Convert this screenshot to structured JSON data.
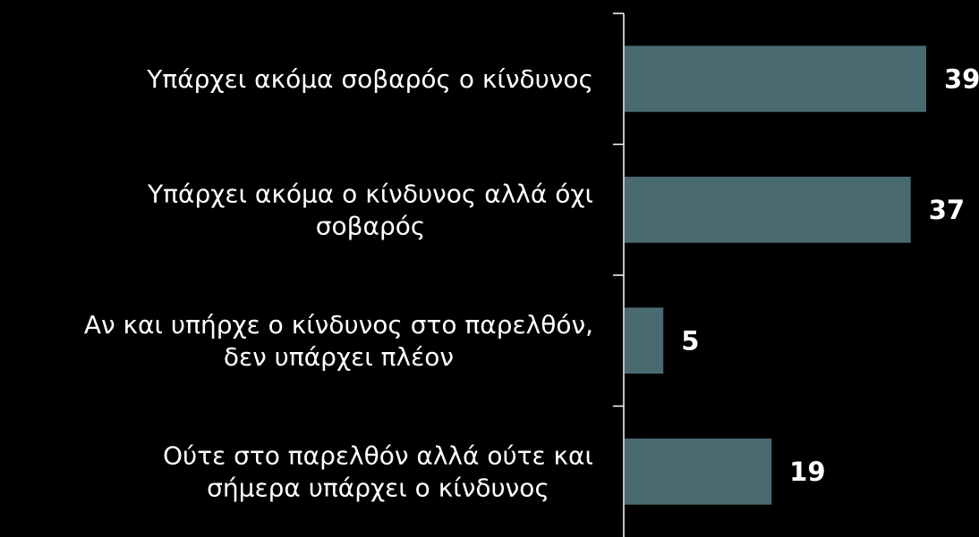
{
  "chart_data": {
    "type": "bar",
    "orientation": "horizontal",
    "categories": [
      [
        "Υπάρχει ακόμα σοβαρός ο κίνδυνος"
      ],
      [
        "Υπάρχει ακόμα ο κίνδυνος αλλά όχι",
        "σοβαρός"
      ],
      [
        "Αν και υπήρχε ο κίνδυνος στο παρελθόν,",
        "δεν υπάρχει πλέον"
      ],
      [
        "Ούτε στο παρελθόν αλλά ούτε και",
        "σήμερα υπάρχει ο κίνδυνος"
      ]
    ],
    "values": [
      39,
      37,
      5,
      19
    ],
    "value_labels": [
      "39",
      "37",
      "5",
      "19"
    ],
    "xlim": [
      0,
      45
    ],
    "grid": false,
    "legend": "none",
    "colors": {
      "background": "#000000",
      "bar": "#4a6a72",
      "axis": "#ffffff",
      "text": "#ffffff"
    }
  }
}
